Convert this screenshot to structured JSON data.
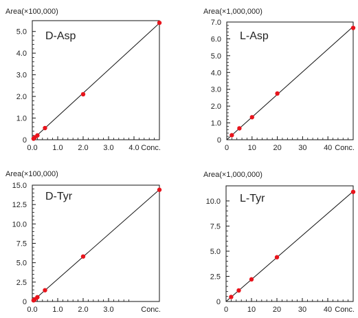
{
  "chart_data": [
    {
      "type": "scatter",
      "title": "D-Asp",
      "ylabel": "Area(×100,000)",
      "xlabel": "Conc.",
      "xlim": [
        0,
        5.0
      ],
      "ylim": [
        0,
        5.5
      ],
      "xticks": [
        0,
        1.0,
        2.0,
        3.0,
        4.0
      ],
      "xtick_labels": [
        "0.0",
        "1.0",
        "2.0",
        "3.0",
        "4.0"
      ],
      "yticks": [
        0,
        1.0,
        2.0,
        3.0,
        4.0,
        5.0
      ],
      "ytick_labels": [
        "0",
        "1.0",
        "2.0",
        "3.0",
        "4.0",
        "5.0"
      ],
      "points": [
        [
          0.05,
          0.05
        ],
        [
          0.1,
          0.11
        ],
        [
          0.2,
          0.2
        ],
        [
          0.5,
          0.54
        ],
        [
          2.0,
          2.1
        ],
        [
          5.0,
          5.4
        ]
      ],
      "fit_line": [
        [
          0,
          0
        ],
        [
          5.2,
          5.6
        ]
      ],
      "point_color": "#e8141c",
      "grid": false
    },
    {
      "type": "scatter",
      "title": "L-Asp",
      "ylabel": "Area(×1,000,000)",
      "xlabel": "Conc.",
      "xlim": [
        0,
        50
      ],
      "ylim": [
        0,
        7.0
      ],
      "xticks": [
        0,
        10,
        20,
        30,
        40
      ],
      "xtick_labels": [
        "0",
        "10",
        "20",
        "30",
        "40"
      ],
      "yticks": [
        0,
        1.0,
        2.0,
        3.0,
        4.0,
        5.0,
        6.0,
        7.0
      ],
      "ytick_labels": [
        "0",
        "1.0",
        "2.0",
        "3.0",
        "4.0",
        "5.0",
        "6.0",
        "7.0"
      ],
      "points": [
        [
          2,
          0.27
        ],
        [
          5,
          0.68
        ],
        [
          10,
          1.34
        ],
        [
          20,
          2.75
        ],
        [
          50,
          6.65
        ]
      ],
      "fit_line": [
        [
          0,
          0
        ],
        [
          52,
          7.0
        ]
      ],
      "point_color": "#e8141c",
      "grid": false
    },
    {
      "type": "scatter",
      "title": "D-Tyr",
      "ylabel": "Area(×100,000)",
      "xlabel": "Conc.",
      "xlim": [
        0,
        5.0
      ],
      "ylim": [
        0,
        15.0
      ],
      "xticks": [
        0,
        1.0,
        2.0,
        3.0
      ],
      "xtick_labels": [
        "0.0",
        "1.0",
        "2.0",
        "3.0"
      ],
      "yticks": [
        0,
        2.5,
        5.0,
        7.5,
        10.0,
        12.5,
        15.0
      ],
      "ytick_labels": [
        "0",
        "2.5",
        "5.0",
        "7.5",
        "10.0",
        "12.5",
        "15.0"
      ],
      "points": [
        [
          0.05,
          0.15
        ],
        [
          0.1,
          0.28
        ],
        [
          0.2,
          0.55
        ],
        [
          0.5,
          1.45
        ],
        [
          2.0,
          5.8
        ],
        [
          5.0,
          14.4
        ]
      ],
      "fit_line": [
        [
          0,
          0
        ],
        [
          5.2,
          15.0
        ]
      ],
      "point_color": "#e8141c",
      "grid": false
    },
    {
      "type": "scatter",
      "title": "L-Tyr",
      "ylabel": "Area(×1,000,000)",
      "xlabel": "Conc.",
      "xlim": [
        0,
        50
      ],
      "ylim": [
        0,
        11.5
      ],
      "xticks": [
        0,
        10,
        20,
        30,
        40
      ],
      "xtick_labels": [
        "0",
        "10",
        "20",
        "30",
        "40"
      ],
      "yticks": [
        0,
        2.5,
        5.0,
        7.5,
        10.0
      ],
      "ytick_labels": [
        "0",
        "2.5",
        "5.0",
        "7.5",
        "10.0"
      ],
      "points": [
        [
          2,
          0.45
        ],
        [
          5,
          1.1
        ],
        [
          10,
          2.2
        ],
        [
          20,
          4.4
        ],
        [
          50,
          10.9
        ]
      ],
      "fit_line": [
        [
          0,
          0
        ],
        [
          52.5,
          11.5
        ]
      ],
      "point_color": "#e8141c",
      "grid": false
    }
  ]
}
